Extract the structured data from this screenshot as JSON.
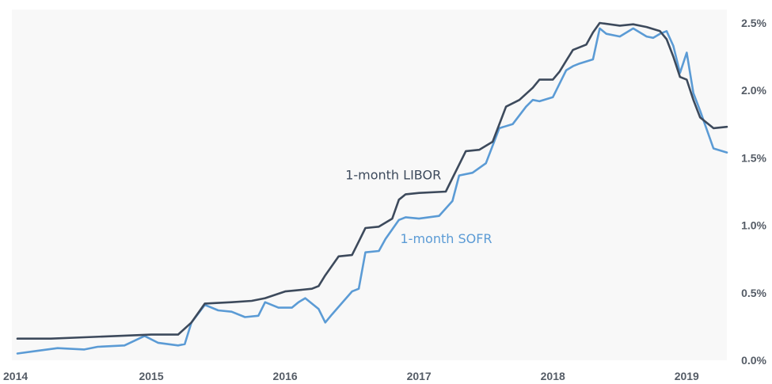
{
  "chart_data": {
    "type": "line",
    "title": "",
    "xlabel": "",
    "ylabel": "",
    "xlim": [
      2014.0,
      2019.3
    ],
    "ylim": [
      0.0,
      2.6
    ],
    "x_ticks": [
      {
        "value": 2014,
        "label": "2014"
      },
      {
        "value": 2015,
        "label": "2015"
      },
      {
        "value": 2016,
        "label": "2016"
      },
      {
        "value": 2017,
        "label": "2017"
      },
      {
        "value": 2018,
        "label": "2018"
      },
      {
        "value": 2019,
        "label": "2019"
      }
    ],
    "y_ticks": [
      {
        "value": 0.0,
        "label": "0.0%"
      },
      {
        "value": 0.5,
        "label": "0.5%"
      },
      {
        "value": 1.0,
        "label": "1.0%"
      },
      {
        "value": 1.5,
        "label": "1.5%"
      },
      {
        "value": 2.0,
        "label": "2.0%"
      },
      {
        "value": 2.5,
        "label": "2.5%"
      }
    ],
    "y_axis_side": "right",
    "grid": false,
    "legend": "inline-labels",
    "series": [
      {
        "name": "1-month LIBOR",
        "color": "#3d4a5c",
        "label_at": {
          "x": 2016.45,
          "y": 1.34
        },
        "x": [
          2014.0,
          2014.25,
          2014.5,
          2014.75,
          2015.0,
          2015.2,
          2015.3,
          2015.4,
          2015.6,
          2015.75,
          2015.85,
          2016.0,
          2016.1,
          2016.2,
          2016.25,
          2016.3,
          2016.4,
          2016.5,
          2016.55,
          2016.6,
          2016.7,
          2016.8,
          2016.85,
          2016.9,
          2017.0,
          2017.2,
          2017.25,
          2017.35,
          2017.45,
          2017.55,
          2017.65,
          2017.75,
          2017.85,
          2017.9,
          2018.0,
          2018.05,
          2018.1,
          2018.15,
          2018.25,
          2018.3,
          2018.35,
          2018.5,
          2018.6,
          2018.7,
          2018.8,
          2018.85,
          2018.9,
          2018.95,
          2019.0,
          2019.05,
          2019.1,
          2019.2,
          2019.3
        ],
        "y": [
          0.16,
          0.16,
          0.17,
          0.18,
          0.19,
          0.19,
          0.28,
          0.42,
          0.43,
          0.44,
          0.46,
          0.51,
          0.52,
          0.53,
          0.55,
          0.63,
          0.77,
          0.78,
          0.88,
          0.98,
          0.99,
          1.05,
          1.19,
          1.23,
          1.24,
          1.25,
          1.35,
          1.55,
          1.56,
          1.62,
          1.88,
          1.93,
          2.02,
          2.08,
          2.08,
          2.14,
          2.22,
          2.3,
          2.34,
          2.43,
          2.5,
          2.48,
          2.49,
          2.47,
          2.44,
          2.38,
          2.25,
          2.1,
          2.08,
          1.93,
          1.8,
          1.72,
          1.73
        ]
      },
      {
        "name": "1-month SOFR",
        "color": "#5b9bd5",
        "label_at": {
          "x": 2016.86,
          "y": 0.87
        },
        "x": [
          2014.0,
          2014.15,
          2014.3,
          2014.5,
          2014.6,
          2014.8,
          2014.95,
          2015.05,
          2015.2,
          2015.25,
          2015.3,
          2015.4,
          2015.5,
          2015.6,
          2015.7,
          2015.8,
          2015.85,
          2015.95,
          2016.05,
          2016.1,
          2016.15,
          2016.25,
          2016.3,
          2016.35,
          2016.5,
          2016.55,
          2016.6,
          2016.7,
          2016.75,
          2016.85,
          2016.9,
          2017.0,
          2017.15,
          2017.25,
          2017.3,
          2017.4,
          2017.5,
          2017.6,
          2017.7,
          2017.8,
          2017.85,
          2017.9,
          2018.0,
          2018.1,
          2018.15,
          2018.2,
          2018.3,
          2018.35,
          2018.4,
          2018.5,
          2018.6,
          2018.7,
          2018.75,
          2018.8,
          2018.85,
          2018.9,
          2018.95,
          2019.0,
          2019.05,
          2019.1,
          2019.2,
          2019.3
        ],
        "y": [
          0.05,
          0.07,
          0.09,
          0.08,
          0.1,
          0.11,
          0.18,
          0.13,
          0.11,
          0.12,
          0.28,
          0.41,
          0.37,
          0.36,
          0.32,
          0.33,
          0.43,
          0.39,
          0.39,
          0.43,
          0.46,
          0.38,
          0.28,
          0.34,
          0.51,
          0.53,
          0.8,
          0.81,
          0.9,
          1.04,
          1.06,
          1.05,
          1.07,
          1.18,
          1.37,
          1.39,
          1.46,
          1.72,
          1.75,
          1.88,
          1.93,
          1.92,
          1.95,
          2.15,
          2.18,
          2.2,
          2.23,
          2.46,
          2.42,
          2.4,
          2.46,
          2.4,
          2.39,
          2.42,
          2.44,
          2.33,
          2.13,
          2.28,
          1.98,
          1.85,
          1.57,
          1.54
        ]
      }
    ]
  }
}
